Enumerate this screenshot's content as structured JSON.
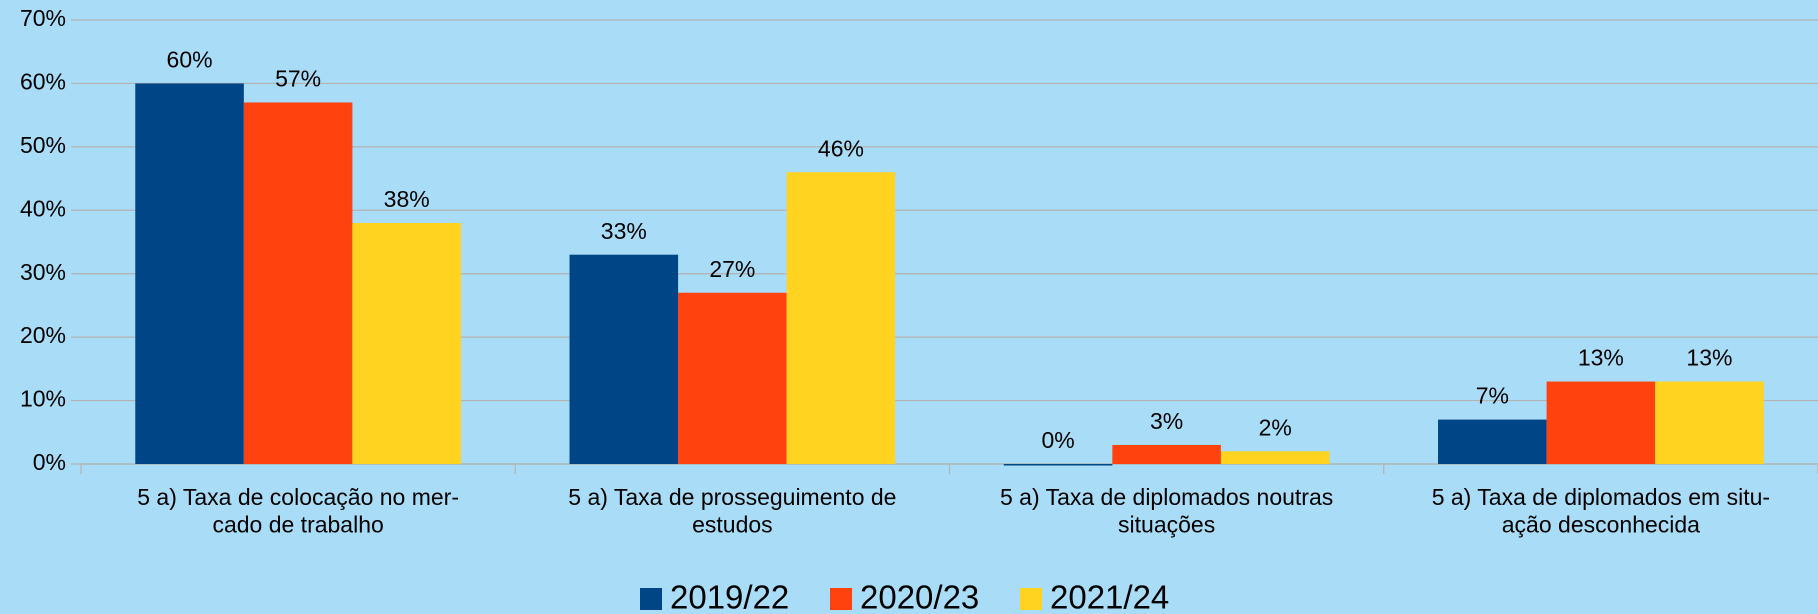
{
  "chart_data": {
    "type": "bar",
    "categories": [
      "5 a) Taxa de colocação no mer-\ncado de trabalho",
      "5 a) Taxa de prosseguimento de\nestudos",
      "5 a) Taxa de diplomados noutras\nsituações",
      "5 a) Taxa de diplomados em situ-\nação desconhecida"
    ],
    "series": [
      {
        "name": "2019/22",
        "color": "#004586",
        "values": [
          60,
          33,
          0,
          7
        ],
        "value_labels": [
          "60%",
          "33%",
          "0%",
          "7%"
        ]
      },
      {
        "name": "2020/23",
        "color": "#ff420e",
        "values": [
          57,
          27,
          3,
          13
        ],
        "value_labels": [
          "57%",
          "27%",
          "3%",
          "13%"
        ]
      },
      {
        "name": "2021/24",
        "color": "#ffd320",
        "values": [
          38,
          46,
          2,
          13
        ],
        "value_labels": [
          "38%",
          "46%",
          "2%",
          "13%"
        ]
      }
    ],
    "ylim": [
      0,
      70
    ],
    "yticks": [
      {
        "value": 0,
        "label": "0%"
      },
      {
        "value": 10,
        "label": "10%"
      },
      {
        "value": 20,
        "label": "20%"
      },
      {
        "value": 30,
        "label": "30%"
      },
      {
        "value": 40,
        "label": "40%"
      },
      {
        "value": 50,
        "label": "50%"
      },
      {
        "value": 60,
        "label": "60%"
      },
      {
        "value": 70,
        "label": "70%"
      }
    ],
    "grid": true,
    "legend": "bottom"
  }
}
